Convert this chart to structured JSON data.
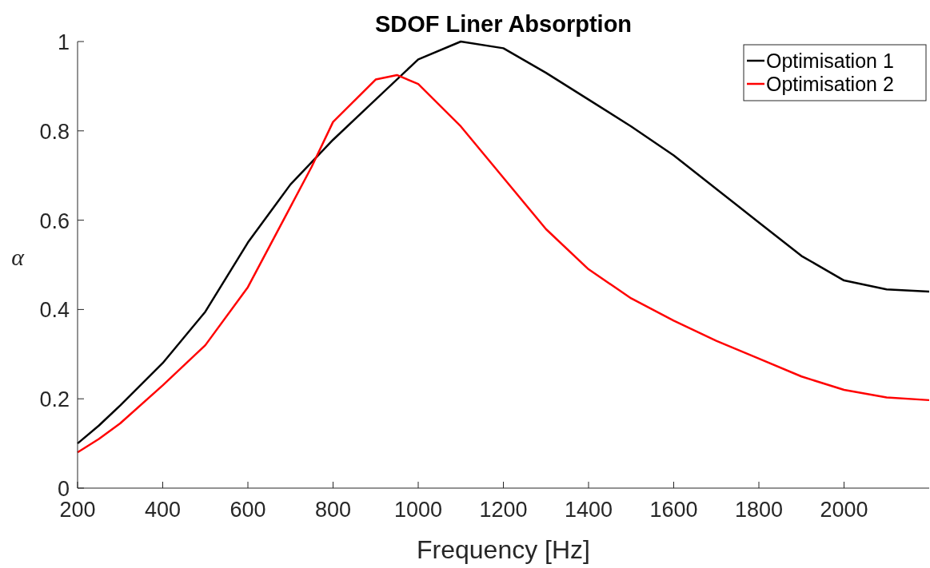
{
  "chart_data": {
    "type": "line",
    "title": "SDOF Liner Absorption",
    "xlabel": "Frequency [Hz]",
    "ylabel": "α",
    "x": [
      200,
      250,
      300,
      400,
      500,
      600,
      700,
      800,
      900,
      1000,
      1100,
      1200,
      1300,
      1400,
      1500,
      1600,
      1700,
      1800,
      1900,
      2000,
      2100,
      2200
    ],
    "series": [
      {
        "name": "Optimisation 1",
        "color": "#000000",
        "values": [
          0.1,
          0.14,
          0.185,
          0.28,
          0.395,
          0.55,
          0.68,
          0.78,
          0.87,
          0.96,
          1.0,
          0.985,
          0.93,
          0.87,
          0.81,
          0.745,
          0.67,
          0.595,
          0.52,
          0.465,
          0.445,
          0.44
        ]
      },
      {
        "name": "Optimisation 2",
        "color": "#ff0000",
        "x": [
          200,
          250,
          300,
          400,
          500,
          600,
          700,
          750,
          800,
          900,
          950,
          1000,
          1100,
          1200,
          1300,
          1400,
          1500,
          1600,
          1700,
          1800,
          1900,
          2000,
          2100,
          2200
        ],
        "values": [
          0.08,
          0.11,
          0.145,
          0.23,
          0.32,
          0.45,
          0.63,
          0.72,
          0.82,
          0.915,
          0.925,
          0.905,
          0.81,
          0.695,
          0.58,
          0.49,
          0.425,
          0.375,
          0.33,
          0.29,
          0.25,
          0.22,
          0.203,
          0.197
        ]
      }
    ],
    "xlim": [
      200,
      2200
    ],
    "ylim": [
      0,
      1
    ],
    "xticks": [
      200,
      400,
      600,
      800,
      1000,
      1200,
      1400,
      1600,
      1800,
      2000
    ],
    "yticks": [
      0,
      0.2,
      0.4,
      0.6,
      0.8,
      1
    ],
    "grid": false,
    "legend": "top right",
    "line_style": "solid"
  }
}
